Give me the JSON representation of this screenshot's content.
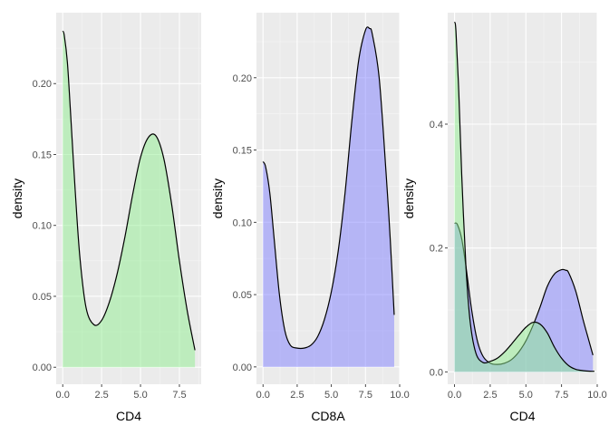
{
  "colors": {
    "panel_bg": "#ebebeb",
    "grid_major": "#ffffff",
    "grid_minor": "#f5f5f5",
    "green_fill": "#90ee90",
    "blue_fill": "#8080ff",
    "fill_alpha": 0.5,
    "line": "#000000"
  },
  "chart_data": [
    {
      "type": "area",
      "xlabel": "CD4",
      "ylabel": "density",
      "xlim": [
        -0.42,
        8.9
      ],
      "ylim": [
        -0.012,
        0.25
      ],
      "xticks": [
        0,
        2.5,
        5,
        7.5
      ],
      "xtick_labels": [
        "0.0",
        "2.5",
        "5.0",
        "7.5"
      ],
      "yticks": [
        0,
        0.05,
        0.1,
        0.15,
        0.2
      ],
      "ytick_labels": [
        "0.00",
        "0.05",
        "0.10",
        "0.15",
        "0.20"
      ],
      "series": [
        {
          "fill": "green",
          "x": [
            0,
            0.1,
            0.3,
            0.5,
            0.8,
            1.1,
            1.5,
            2.0,
            2.5,
            3.0,
            3.5,
            4.0,
            4.5,
            5.0,
            5.5,
            6.0,
            6.5,
            7.0,
            7.5,
            8.0,
            8.5
          ],
          "y": [
            0.237,
            0.234,
            0.215,
            0.18,
            0.125,
            0.078,
            0.042,
            0.03,
            0.033,
            0.046,
            0.066,
            0.092,
            0.122,
            0.148,
            0.162,
            0.163,
            0.147,
            0.115,
            0.075,
            0.04,
            0.012
          ]
        }
      ]
    },
    {
      "type": "area",
      "xlabel": "CD8A",
      "ylabel": "density",
      "xlim": [
        -0.48,
        10.0
      ],
      "ylim": [
        -0.012,
        0.245
      ],
      "xticks": [
        0,
        2.5,
        5,
        7.5,
        10
      ],
      "xtick_labels": [
        "0.0",
        "2.5",
        "5.0",
        "7.5",
        "10.0"
      ],
      "yticks": [
        0,
        0.05,
        0.1,
        0.15,
        0.2
      ],
      "ytick_labels": [
        "0.00",
        "0.05",
        "0.10",
        "0.15",
        "0.20"
      ],
      "series": [
        {
          "fill": "blue",
          "x": [
            0,
            0.2,
            0.5,
            0.8,
            1.2,
            1.6,
            2.0,
            2.5,
            3.0,
            3.5,
            4.0,
            4.5,
            5.0,
            5.5,
            6.0,
            6.5,
            7.0,
            7.5,
            7.8,
            8.0,
            8.5,
            9.0,
            9.3,
            9.6
          ],
          "y": [
            0.142,
            0.138,
            0.12,
            0.09,
            0.05,
            0.025,
            0.015,
            0.013,
            0.013,
            0.015,
            0.021,
            0.033,
            0.052,
            0.08,
            0.12,
            0.17,
            0.212,
            0.233,
            0.234,
            0.23,
            0.2,
            0.135,
            0.09,
            0.036
          ]
        }
      ]
    },
    {
      "type": "area",
      "xlabel": "CD4",
      "ylabel": "density",
      "xlim": [
        -0.48,
        10.0
      ],
      "ylim": [
        -0.02,
        0.58
      ],
      "xticks": [
        0,
        2.5,
        5,
        7.5,
        10
      ],
      "xtick_labels": [
        "0.0",
        "2.5",
        "5.0",
        "7.5",
        "10.0"
      ],
      "yticks": [
        0,
        0.2,
        0.4
      ],
      "ytick_labels": [
        "0.0",
        "0.2",
        "0.4"
      ],
      "series": [
        {
          "fill": "blue",
          "x": [
            0,
            0.2,
            0.5,
            0.8,
            1.2,
            1.6,
            2.0,
            2.5,
            3.0,
            3.5,
            4.0,
            4.5,
            5.0,
            5.5,
            6.0,
            6.5,
            7.0,
            7.5,
            7.8,
            8.0,
            8.5,
            9.0,
            9.3,
            9.7
          ],
          "y": [
            0.24,
            0.238,
            0.215,
            0.17,
            0.1,
            0.05,
            0.025,
            0.014,
            0.012,
            0.014,
            0.02,
            0.032,
            0.05,
            0.075,
            0.105,
            0.138,
            0.158,
            0.165,
            0.164,
            0.16,
            0.13,
            0.085,
            0.06,
            0.027
          ]
        },
        {
          "fill": "green",
          "x": [
            0,
            0.1,
            0.3,
            0.5,
            0.8,
            1.1,
            1.5,
            2.0,
            2.5,
            3.0,
            3.5,
            4.0,
            4.5,
            5.0,
            5.5,
            6.0,
            6.5,
            7.0,
            7.5,
            8.0,
            8.5,
            9.0,
            9.5,
            9.8
          ],
          "y": [
            0.565,
            0.55,
            0.45,
            0.32,
            0.17,
            0.08,
            0.03,
            0.015,
            0.017,
            0.022,
            0.032,
            0.045,
            0.059,
            0.072,
            0.08,
            0.077,
            0.063,
            0.04,
            0.022,
            0.01,
            0.004,
            0.002,
            0.001,
            0.001
          ]
        }
      ]
    }
  ]
}
